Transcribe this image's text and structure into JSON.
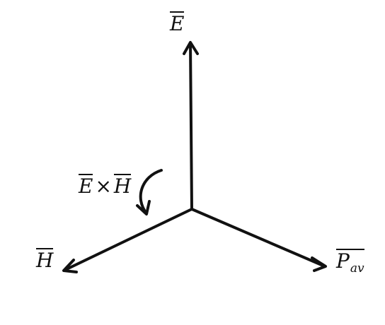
{
  "diagram": {
    "axes": [
      {
        "id": "e",
        "symbol": "E",
        "direction": "up"
      },
      {
        "id": "h",
        "symbol": "H",
        "direction": "lower-left"
      },
      {
        "id": "p",
        "symbol": "P",
        "subscript": "av",
        "direction": "lower-right"
      }
    ],
    "cross_product": {
      "left": "E",
      "operator": "×",
      "right": "H"
    },
    "ink_color": "#111111",
    "background_color": "#ffffff"
  }
}
